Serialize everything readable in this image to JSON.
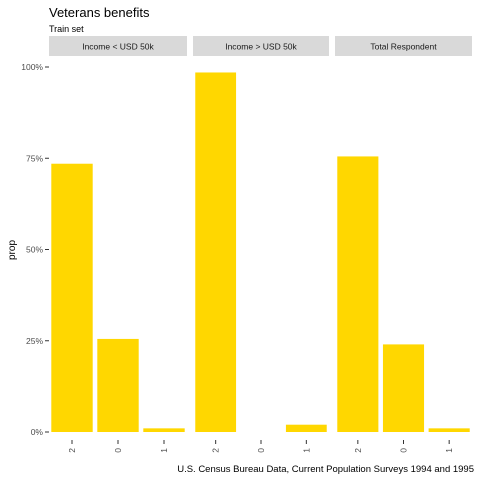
{
  "chart_data": {
    "type": "bar",
    "title": "Veterans benefits",
    "subtitle": "Train set",
    "ylabel": "prop",
    "xlabel": "",
    "caption": "U.S. Census Bureau Data, Current Population Surveys 1994 and 1995",
    "ylim": [
      0,
      1
    ],
    "y_ticks": [
      {
        "value": 0,
        "label": "0%"
      },
      {
        "value": 0.25,
        "label": "25%"
      },
      {
        "value": 0.5,
        "label": "50%"
      },
      {
        "value": 0.75,
        "label": "75%"
      },
      {
        "value": 1,
        "label": "100%"
      }
    ],
    "grid": false,
    "bar_color": "#FFD700",
    "strip_color": "#D9D9D9",
    "facets": [
      {
        "label": "Income < USD 50k",
        "categories": [
          "2",
          "0",
          "1"
        ],
        "values": [
          0.735,
          0.255,
          0.01
        ]
      },
      {
        "label": "Income > USD 50k",
        "categories": [
          "2",
          "0",
          "1"
        ],
        "values": [
          0.985,
          0.0,
          0.02
        ]
      },
      {
        "label": "Total Respondent",
        "categories": [
          "2",
          "0",
          "1"
        ],
        "values": [
          0.755,
          0.24,
          0.01
        ]
      }
    ]
  }
}
